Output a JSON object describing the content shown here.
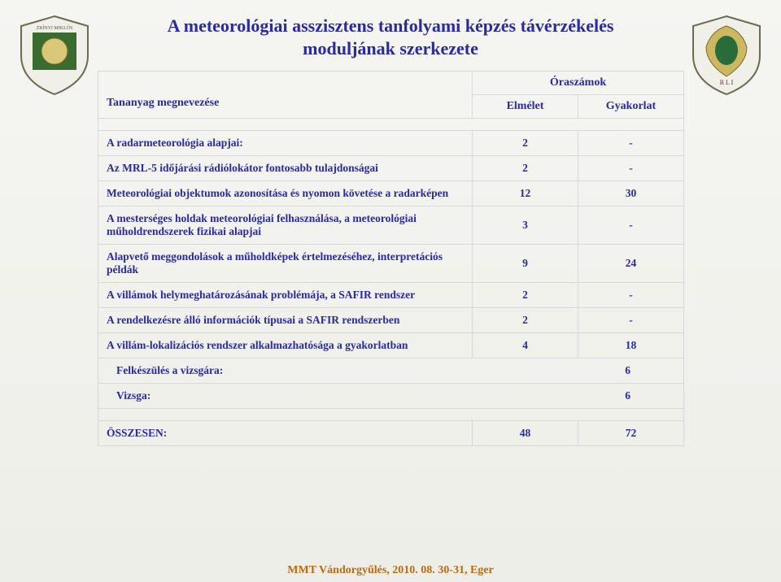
{
  "title_line1": "A meteorológiai asszisztens tanfolyami képzés távérzékelés",
  "title_line2": "moduljának szerkezete",
  "header": {
    "name": "Tananyag megnevezése",
    "hours": "Óraszámok",
    "theory": "Elmélet",
    "practice": "Gyakorlat"
  },
  "rows": [
    {
      "name": "A radarmeteorológia alapjai:",
      "c1": "2",
      "c2": "-"
    },
    {
      "name": "Az MRL-5 időjárási rádiólokátor fontosabb tulajdonságai",
      "c1": "2",
      "c2": "-"
    },
    {
      "name": "Meteorológiai objektumok azonosítása és nyomon követése a radarképen",
      "c1": "12",
      "c2": "30"
    },
    {
      "name": "A mesterséges holdak meteorológiai felhasználása, a meteorológiai műholdrendszerek fizikai alapjai",
      "c1": "3",
      "c2": "-"
    },
    {
      "name": "Alapvető meggondolások a műholdképek értelmezéséhez, interpretációs példák",
      "c1": "9",
      "c2": "24"
    },
    {
      "name": "A villámok helymeghatározásának problémája, a SAFIR rendszer",
      "c1": "2",
      "c2": "-"
    },
    {
      "name": "A rendelkezésre álló információk típusai a SAFIR rendszerben",
      "c1": "2",
      "c2": "-"
    },
    {
      "name": "A villám-lokalizációs rendszer alkalmazhatósága a gyakorlatban",
      "c1": "4",
      "c2": "18"
    }
  ],
  "single_rows": [
    {
      "label": "Felkészülés a vizsgára:",
      "value": "6"
    },
    {
      "label": "Vizsga:",
      "value": "6"
    }
  ],
  "total": {
    "name": "ÖSSZESEN:",
    "c1": "48",
    "c2": "72"
  },
  "footer": "MMT Vándorgyűlés, 2010. 08. 30-31, Eger",
  "colors": {
    "text": "#2a2aa3",
    "border": "#d8d8d8",
    "footer": "#bb6a12",
    "bg_top": "#f5f5f2",
    "bg_bottom": "#eeeee8"
  }
}
